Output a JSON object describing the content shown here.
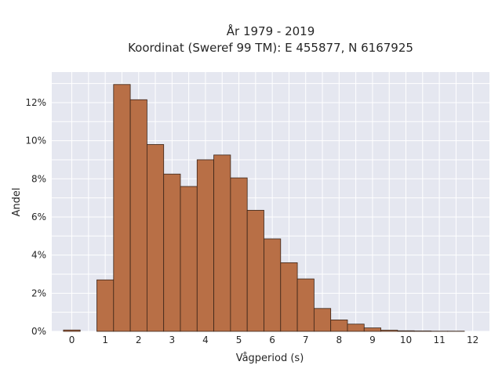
{
  "chart_data": {
    "type": "bar",
    "title_line1": "År 1979 - 2019",
    "title_line2": "Koordinat (Sweref 99 TM): E 455877, N 6167925",
    "xlabel": "Vågperiod (s)",
    "ylabel": "Andel",
    "xlim": [
      -0.6,
      12.5
    ],
    "ylim": [
      0,
      13.6
    ],
    "x_ticks": [
      "0",
      "1",
      "2",
      "3",
      "4",
      "5",
      "6",
      "7",
      "8",
      "9",
      "10",
      "11",
      "12"
    ],
    "y_ticks": [
      "0%",
      "2%",
      "4%",
      "6%",
      "8%",
      "10%",
      "12%"
    ],
    "grid": true,
    "bin_width": 0.5,
    "bins": [
      {
        "x": 0.0,
        "value": 0.07
      },
      {
        "x": 1.0,
        "value": 2.7
      },
      {
        "x": 1.5,
        "value": 12.95
      },
      {
        "x": 2.0,
        "value": 12.15
      },
      {
        "x": 2.5,
        "value": 9.8
      },
      {
        "x": 3.0,
        "value": 8.25
      },
      {
        "x": 3.5,
        "value": 7.6
      },
      {
        "x": 4.0,
        "value": 9.0
      },
      {
        "x": 4.5,
        "value": 9.25
      },
      {
        "x": 5.0,
        "value": 8.05
      },
      {
        "x": 5.5,
        "value": 6.35
      },
      {
        "x": 6.0,
        "value": 4.85
      },
      {
        "x": 6.5,
        "value": 3.6
      },
      {
        "x": 7.0,
        "value": 2.75
      },
      {
        "x": 7.5,
        "value": 1.2
      },
      {
        "x": 8.0,
        "value": 0.6
      },
      {
        "x": 8.5,
        "value": 0.38
      },
      {
        "x": 9.0,
        "value": 0.18
      },
      {
        "x": 9.5,
        "value": 0.06
      },
      {
        "x": 10.0,
        "value": 0.03
      },
      {
        "x": 10.5,
        "value": 0.02
      },
      {
        "x": 11.0,
        "value": 0.01
      },
      {
        "x": 11.5,
        "value": 0.01
      }
    ],
    "colors": {
      "bar_fill": "#b86f46",
      "bar_edge": "#3a2418",
      "plot_bg": "#e5e7f0",
      "grid": "#ffffff"
    }
  }
}
